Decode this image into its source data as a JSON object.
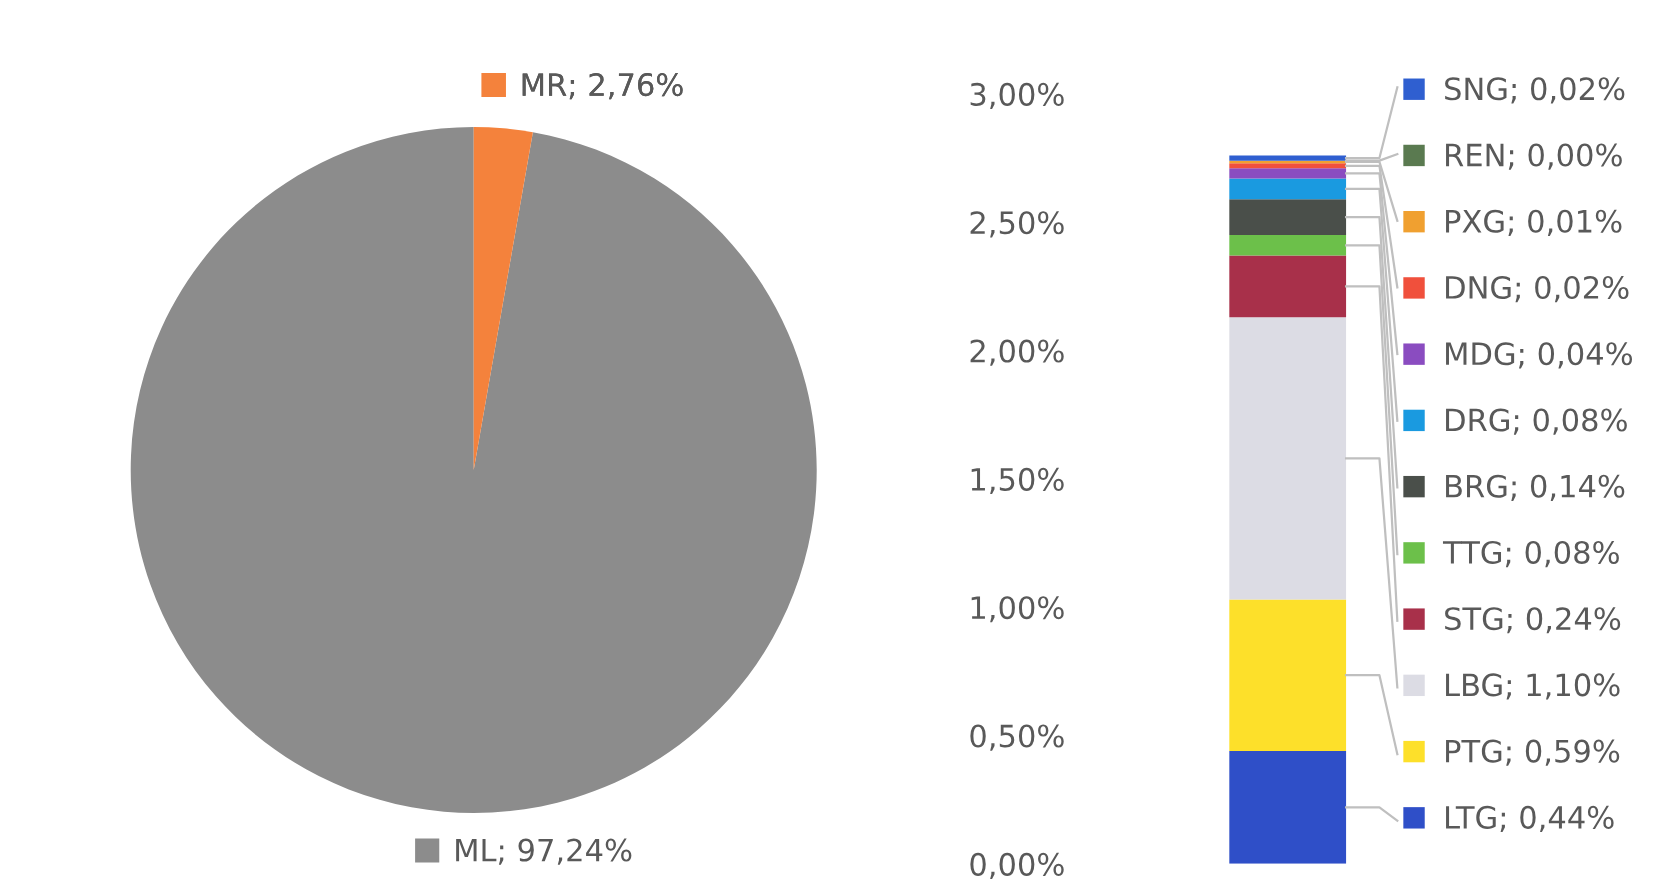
{
  "chart_data": [
    {
      "type": "pie",
      "categories": [
        "ML",
        "MR"
      ],
      "values": [
        97.24,
        2.76
      ],
      "colors": [
        "#8c8c8c",
        "#f4823c"
      ],
      "value_labels": [
        "97,24%",
        "2,76%"
      ],
      "legend": "top"
    },
    {
      "type": "bar",
      "stacked": true,
      "categories": [
        null
      ],
      "ylim": [
        0,
        3
      ],
      "yticks": [
        {
          "value": 0,
          "label": "0,00%"
        },
        {
          "value": 0.5,
          "label": "0,50%"
        },
        {
          "value": 1,
          "label": "1,00%"
        },
        {
          "value": 1.5,
          "label": "1,50%"
        },
        {
          "value": 2,
          "label": "2,00%"
        },
        {
          "value": 2.5,
          "label": "2,50%"
        },
        {
          "value": 3,
          "label": "3,00%"
        }
      ],
      "legend": "right",
      "series": [
        {
          "name": "LTG; 0,44%",
          "color": "#2f4fc8",
          "values": [
            0.44
          ]
        },
        {
          "name": "PTG; 0,59%",
          "color": "#fde02a",
          "values": [
            0.59
          ]
        },
        {
          "name": "LBG; 1,10%",
          "color": "#dcdce4",
          "values": [
            1.1
          ]
        },
        {
          "name": "STG; 0,24%",
          "color": "#a8304a",
          "values": [
            0.24
          ]
        },
        {
          "name": "TTG; 0,08%",
          "color": "#6cc04a",
          "values": [
            0.08
          ]
        },
        {
          "name": "BRG; 0,14%",
          "color": "#4a4f4a",
          "values": [
            0.14
          ]
        },
        {
          "name": "DRG; 0,08%",
          "color": "#1a9ae0",
          "values": [
            0.08
          ]
        },
        {
          "name": "MDG; 0,04%",
          "color": "#8a4cc0",
          "values": [
            0.04
          ]
        },
        {
          "name": "DNG; 0,02%",
          "color": "#f0503c",
          "values": [
            0.02
          ]
        },
        {
          "name": "PXG; 0,01%",
          "color": "#f0a030",
          "values": [
            0.01
          ]
        },
        {
          "name": "REN; 0,00%",
          "color": "#5a7a50",
          "values": [
            0.0
          ]
        },
        {
          "name": "SNG; 0,02%",
          "color": "#2f5fd0",
          "values": [
            0.02
          ]
        }
      ]
    }
  ]
}
